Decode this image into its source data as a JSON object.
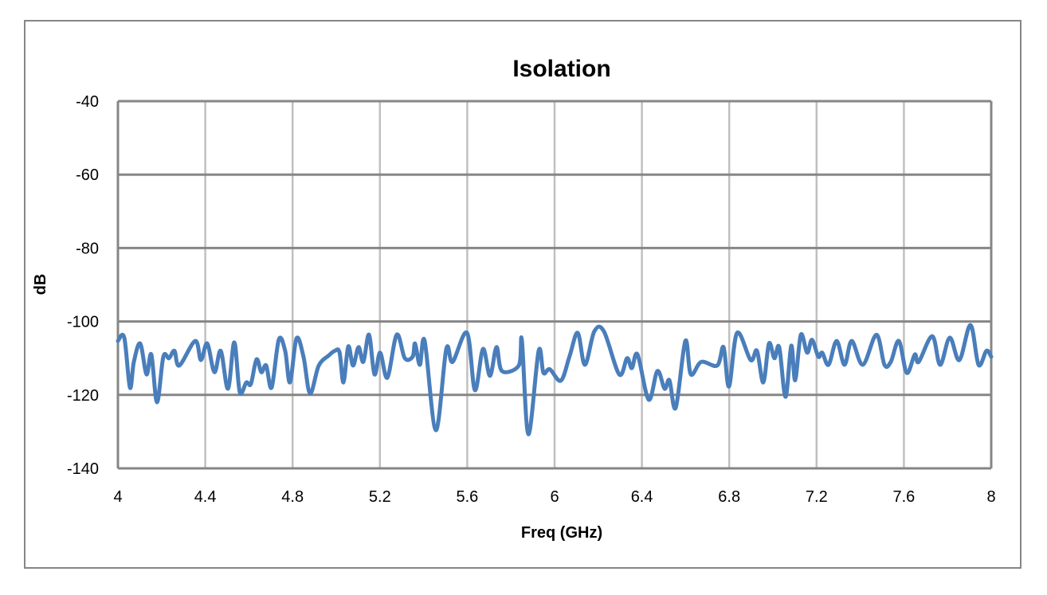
{
  "chart_data": {
    "type": "line",
    "title": "Isolation",
    "xlabel": "Freq (GHz)",
    "ylabel": "dB",
    "xlim": [
      4,
      8
    ],
    "ylim": [
      -140,
      -40
    ],
    "xticks": [
      "4",
      "4.4",
      "4.8",
      "5.2",
      "5.6",
      "6",
      "6.4",
      "6.8",
      "7.2",
      "7.6",
      "8"
    ],
    "yticks": [
      "-40",
      "-60",
      "-80",
      "-100",
      "-120",
      "-140"
    ],
    "grid": true,
    "legend": "none",
    "line_color": "#4a7ebb",
    "series": [
      {
        "x": [
          4.0,
          4.029,
          4.055,
          4.073,
          4.102,
          4.131,
          4.153,
          4.179,
          4.208,
          4.234,
          4.259,
          4.281,
          4.354,
          4.38,
          4.409,
          4.442,
          4.471,
          4.504,
          4.533,
          4.558,
          4.588,
          4.609,
          4.635,
          4.657,
          4.679,
          4.704,
          4.737,
          4.766,
          4.788,
          4.818,
          4.85,
          4.88,
          4.92,
          4.967,
          4.993,
          5.015,
          5.033,
          5.055,
          5.077,
          5.102,
          5.124,
          5.15,
          5.175,
          5.201,
          5.234,
          5.277,
          5.314,
          5.35,
          5.361,
          5.383,
          5.405,
          5.456,
          5.504,
          5.533,
          5.599,
          5.635,
          5.672,
          5.704,
          5.734,
          5.759,
          5.836,
          5.85,
          5.88,
          5.927,
          5.949,
          5.978,
          6.029,
          6.069,
          6.106,
          6.139,
          6.182,
          6.226,
          6.296,
          6.332,
          6.354,
          6.38,
          6.431,
          6.471,
          6.504,
          6.526,
          6.555,
          6.599,
          6.624,
          6.672,
          6.745,
          6.774,
          6.799,
          6.836,
          6.898,
          6.927,
          6.956,
          6.982,
          7.007,
          7.029,
          7.058,
          7.084,
          7.102,
          7.128,
          7.157,
          7.179,
          7.208,
          7.226,
          7.255,
          7.292,
          7.328,
          7.361,
          7.412,
          7.474,
          7.511,
          7.54,
          7.577,
          7.613,
          7.65,
          7.668,
          7.73,
          7.766,
          7.81,
          7.854,
          7.905,
          7.942,
          7.978,
          8.0
        ],
        "y": [
          -105.3,
          -104.4,
          -118,
          -111,
          -106,
          -114.4,
          -109,
          -122,
          -109.6,
          -110,
          -108,
          -112,
          -105.3,
          -110.5,
          -106,
          -113.8,
          -108,
          -118.3,
          -105.7,
          -119.2,
          -116.6,
          -117,
          -110.3,
          -113.8,
          -112,
          -118,
          -104.9,
          -108,
          -116.6,
          -104.6,
          -109.6,
          -119.6,
          -112,
          -109.2,
          -108,
          -108.4,
          -116.6,
          -106.8,
          -112,
          -107,
          -111,
          -103.6,
          -114.4,
          -108.5,
          -115.3,
          -103.6,
          -110,
          -109.6,
          -106,
          -111.8,
          -105.3,
          -129.6,
          -107.5,
          -111,
          -103.1,
          -118.7,
          -107.5,
          -114.8,
          -107,
          -113.5,
          -112,
          -105,
          -130.7,
          -108,
          -114,
          -113,
          -116.1,
          -109.4,
          -103.1,
          -111.8,
          -102.7,
          -102.7,
          -114.4,
          -110,
          -112.7,
          -109,
          -121.3,
          -113.5,
          -118.3,
          -116,
          -123.5,
          -105.3,
          -114.4,
          -111,
          -112,
          -107,
          -117.7,
          -103.1,
          -110.5,
          -108,
          -116.6,
          -106,
          -110,
          -107,
          -120.5,
          -106.6,
          -116,
          -103.6,
          -108.5,
          -105,
          -109.6,
          -108.5,
          -111.8,
          -105.3,
          -111.8,
          -105.3,
          -111.8,
          -103.6,
          -111.8,
          -111,
          -105.3,
          -114,
          -109,
          -111,
          -104,
          -111.8,
          -104.4,
          -110.5,
          -101,
          -111.8,
          -108,
          -109.6
        ]
      }
    ]
  }
}
